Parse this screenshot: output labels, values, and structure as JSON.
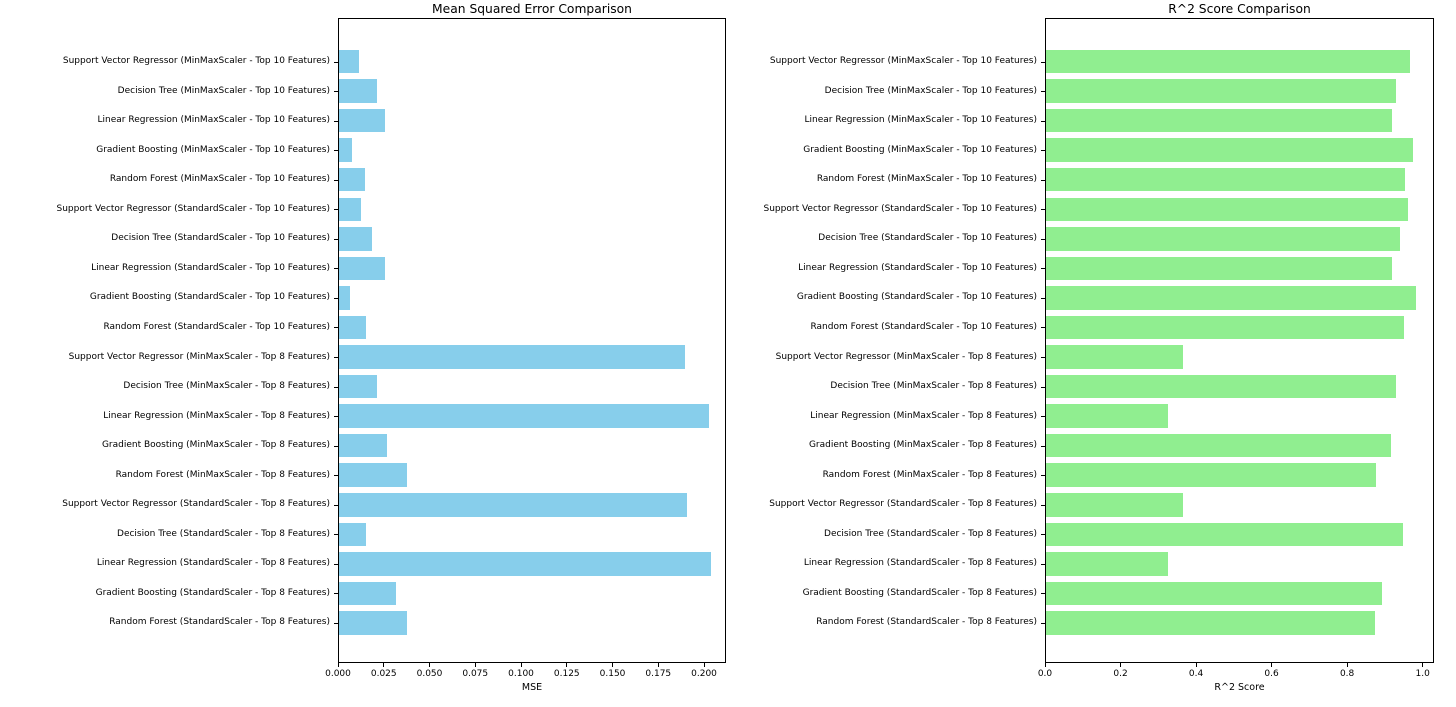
{
  "chart_data": [
    {
      "id": "mse",
      "type": "bar",
      "orientation": "horizontal",
      "title": "Mean Squared Error Comparison",
      "xlabel": "MSE",
      "ylabel": "",
      "bar_color": "#87CEEB",
      "axis_color": "#000000",
      "grid": false,
      "legend": "none",
      "xlim": [
        0,
        0.212
      ],
      "xtick_values": [
        0,
        0.025,
        0.05,
        0.075,
        0.1,
        0.125,
        0.15,
        0.175,
        0.2
      ],
      "xtick_labels": [
        "0.000",
        "0.025",
        "0.050",
        "0.075",
        "0.100",
        "0.125",
        "0.150",
        "0.175",
        "0.200"
      ],
      "categories": [
        "Support Vector Regressor (MinMaxScaler - Top 10 Features)",
        "Decision Tree (MinMaxScaler - Top 10 Features)",
        "Linear Regression (MinMaxScaler - Top 10 Features)",
        "Gradient Boosting (MinMaxScaler - Top 10 Features)",
        "Random Forest (MinMaxScaler - Top 10 Features)",
        "Support Vector Regressor (StandardScaler - Top 10 Features)",
        "Decision Tree (StandardScaler - Top 10 Features)",
        "Linear Regression (StandardScaler - Top 10 Features)",
        "Gradient Boosting (StandardScaler - Top 10 Features)",
        "Random Forest (StandardScaler - Top 10 Features)",
        "Support Vector Regressor (MinMaxScaler - Top 8 Features)",
        "Decision Tree (MinMaxScaler - Top 8 Features)",
        "Linear Regression (MinMaxScaler - Top 8 Features)",
        "Gradient Boosting (MinMaxScaler - Top 8 Features)",
        "Random Forest (MinMaxScaler - Top 8 Features)",
        "Support Vector Regressor (StandardScaler - Top 8 Features)",
        "Decision Tree (StandardScaler - Top 8 Features)",
        "Linear Regression (StandardScaler - Top 8 Features)",
        "Gradient Boosting (StandardScaler - Top 8 Features)",
        "Random Forest (StandardScaler - Top 8 Features)"
      ],
      "values": [
        0.011,
        0.021,
        0.025,
        0.007,
        0.014,
        0.012,
        0.018,
        0.025,
        0.006,
        0.015,
        0.189,
        0.021,
        0.202,
        0.026,
        0.037,
        0.19,
        0.015,
        0.203,
        0.031,
        0.037
      ]
    },
    {
      "id": "r2",
      "type": "bar",
      "orientation": "horizontal",
      "title": "R^2 Score Comparison",
      "xlabel": "R^2 Score",
      "ylabel": "",
      "bar_color": "#90EE90",
      "axis_color": "#000000",
      "grid": false,
      "legend": "none",
      "xlim": [
        0,
        1.03
      ],
      "xtick_values": [
        0,
        0.2,
        0.4,
        0.6,
        0.8,
        1.0
      ],
      "xtick_labels": [
        "0.0",
        "0.2",
        "0.4",
        "0.6",
        "0.8",
        "1.0"
      ],
      "categories": [
        "Support Vector Regressor (MinMaxScaler - Top 10 Features)",
        "Decision Tree (MinMaxScaler - Top 10 Features)",
        "Linear Regression (MinMaxScaler - Top 10 Features)",
        "Gradient Boosting (MinMaxScaler - Top 10 Features)",
        "Random Forest (MinMaxScaler - Top 10 Features)",
        "Support Vector Regressor (StandardScaler - Top 10 Features)",
        "Decision Tree (StandardScaler - Top 10 Features)",
        "Linear Regression (StandardScaler - Top 10 Features)",
        "Gradient Boosting (StandardScaler - Top 10 Features)",
        "Random Forest (StandardScaler - Top 10 Features)",
        "Support Vector Regressor (MinMaxScaler - Top 8 Features)",
        "Decision Tree (MinMaxScaler - Top 8 Features)",
        "Linear Regression (MinMaxScaler - Top 8 Features)",
        "Gradient Boosting (MinMaxScaler - Top 8 Features)",
        "Random Forest (MinMaxScaler - Top 8 Features)",
        "Support Vector Regressor (StandardScaler - Top 8 Features)",
        "Decision Tree (StandardScaler - Top 8 Features)",
        "Linear Regression (StandardScaler - Top 8 Features)",
        "Gradient Boosting (StandardScaler - Top 8 Features)",
        "Random Forest (StandardScaler - Top 8 Features)"
      ],
      "values": [
        0.963,
        0.927,
        0.915,
        0.972,
        0.95,
        0.958,
        0.938,
        0.916,
        0.98,
        0.947,
        0.364,
        0.928,
        0.322,
        0.913,
        0.874,
        0.362,
        0.945,
        0.322,
        0.889,
        0.872
      ]
    }
  ]
}
